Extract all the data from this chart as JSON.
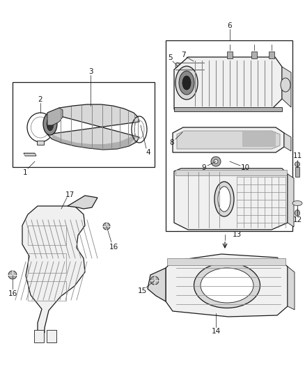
{
  "bg_color": "#ffffff",
  "line_color": "#1a1a1a",
  "gray1": "#cccccc",
  "gray2": "#aaaaaa",
  "gray3": "#888888",
  "gray4": "#666666",
  "gray5": "#444444",
  "fill_light": "#f0f0f0",
  "fill_med": "#d8d8d8",
  "fill_dark": "#b0b0b0",
  "fill_darker": "#888888",
  "fig_width": 4.38,
  "fig_height": 5.33,
  "dpi": 100
}
